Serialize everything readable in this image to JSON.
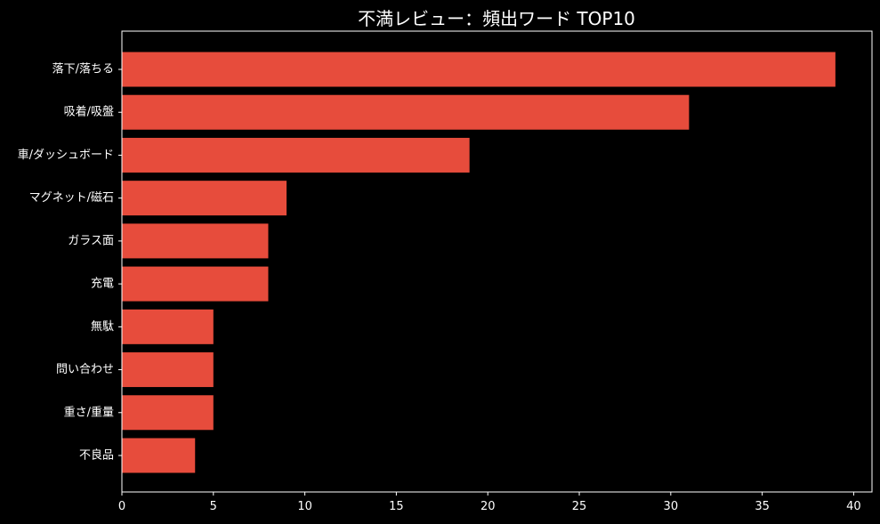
{
  "chart_data": {
    "type": "bar",
    "orientation": "horizontal",
    "title": "不満レビュー：頻出ワード TOP10",
    "xlabel": "",
    "ylabel": "",
    "categories": [
      "落下/落ちる",
      "吸着/吸盤",
      "車/ダッシュボード",
      "マグネット/磁石",
      "ガラス面",
      "充電",
      "無駄",
      "問い合わせ",
      "重さ/重量",
      "不良品"
    ],
    "values": [
      39,
      31,
      19,
      9,
      8,
      8,
      5,
      5,
      5,
      4
    ],
    "xlim": [
      0,
      41
    ],
    "xticks": [
      0,
      5,
      10,
      15,
      20,
      25,
      30,
      35,
      40
    ],
    "grid": false,
    "legend": "none",
    "bar_color": "#e74c3c",
    "background_color": "#000000",
    "text_color": "#ffffff"
  }
}
